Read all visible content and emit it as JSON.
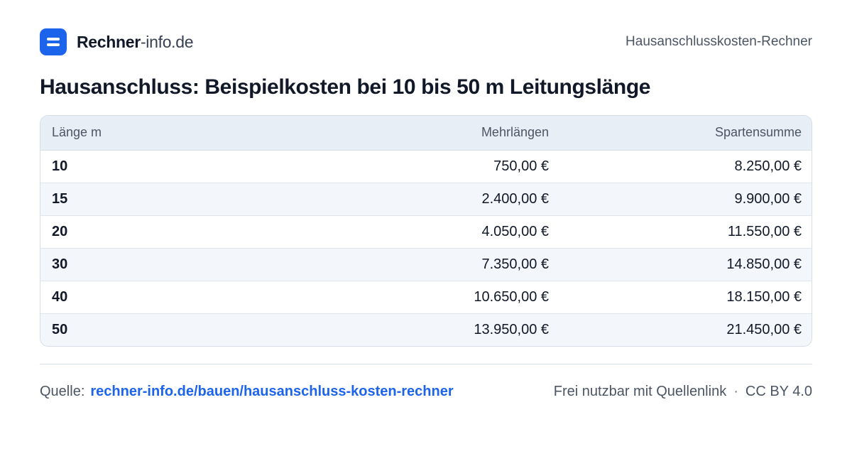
{
  "header": {
    "brand_strong": "Rechner",
    "brand_light": "-info.de",
    "page_name": "Hausanschlusskosten-Rechner"
  },
  "title": "Hausanschluss: Beispielkosten bei 10 bis 50 m Leitungslänge",
  "table": {
    "columns": [
      "Länge m",
      "Mehrlängen",
      "Spartensumme"
    ],
    "rows": [
      [
        "10",
        "750,00 €",
        "8.250,00 €"
      ],
      [
        "15",
        "2.400,00 €",
        "9.900,00 €"
      ],
      [
        "20",
        "4.050,00 €",
        "11.550,00 €"
      ],
      [
        "30",
        "7.350,00 €",
        "14.850,00 €"
      ],
      [
        "40",
        "10.650,00 €",
        "18.150,00 €"
      ],
      [
        "50",
        "13.950,00 €",
        "21.450,00 €"
      ]
    ]
  },
  "footer": {
    "source_label": "Quelle:",
    "source_link": "rechner-info.de/bauen/hausanschluss-kosten-rechner",
    "usage": "Frei nutzbar mit Quellenlink",
    "separator": "·",
    "license": "CC BY 4.0"
  },
  "colors": {
    "accent": "#1d64ec",
    "header_row": "#e8eef6",
    "stripe_row": "#f3f6fa"
  }
}
